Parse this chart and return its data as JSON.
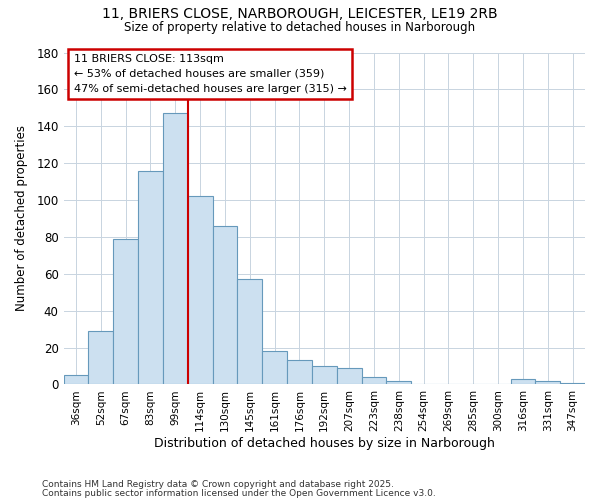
{
  "title1": "11, BRIERS CLOSE, NARBOROUGH, LEICESTER, LE19 2RB",
  "title2": "Size of property relative to detached houses in Narborough",
  "xlabel": "Distribution of detached houses by size in Narborough",
  "ylabel": "Number of detached properties",
  "categories": [
    "36sqm",
    "52sqm",
    "67sqm",
    "83sqm",
    "99sqm",
    "114sqm",
    "130sqm",
    "145sqm",
    "161sqm",
    "176sqm",
    "192sqm",
    "207sqm",
    "223sqm",
    "238sqm",
    "254sqm",
    "269sqm",
    "285sqm",
    "300sqm",
    "316sqm",
    "331sqm",
    "347sqm"
  ],
  "values": [
    5,
    29,
    79,
    116,
    147,
    102,
    86,
    57,
    18,
    13,
    10,
    9,
    4,
    2,
    0,
    0,
    0,
    0,
    3,
    2,
    1
  ],
  "bar_color": "#cce0f0",
  "bar_edge_color": "#6699bb",
  "vline_x_index": 5,
  "vline_color": "#cc0000",
  "annotation_title": "11 BRIERS CLOSE: 113sqm",
  "annotation_line1": "← 53% of detached houses are smaller (359)",
  "annotation_line2": "47% of semi-detached houses are larger (315) →",
  "annotation_box_color": "#ffffff",
  "annotation_box_edge": "#cc0000",
  "ylim": [
    0,
    180
  ],
  "yticks": [
    0,
    20,
    40,
    60,
    80,
    100,
    120,
    140,
    160,
    180
  ],
  "footer1": "Contains HM Land Registry data © Crown copyright and database right 2025.",
  "footer2": "Contains public sector information licensed under the Open Government Licence v3.0.",
  "bg_color": "#ffffff",
  "grid_color": "#c8d4e0"
}
